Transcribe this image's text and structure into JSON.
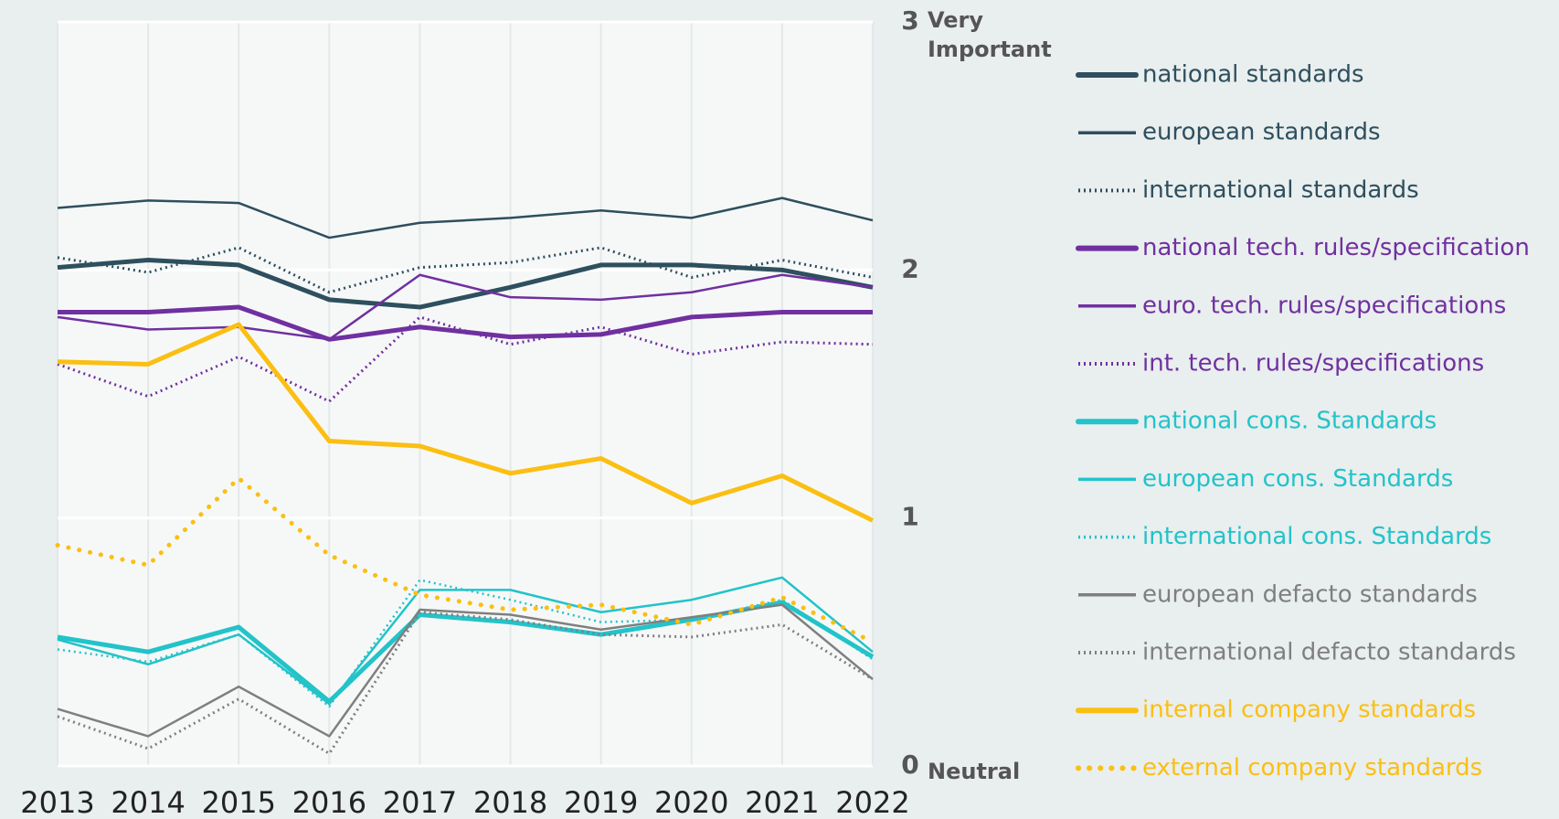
{
  "chart_data": {
    "type": "line",
    "x": [
      2013,
      2014,
      2015,
      2016,
      2017,
      2018,
      2019,
      2020,
      2021,
      2022
    ],
    "xlim": [
      2013,
      2022
    ],
    "ylim": [
      0,
      3
    ],
    "yticks": [
      0,
      1,
      2,
      3
    ],
    "annotations": {
      "top": "Very Important",
      "bottom": "Neutral"
    },
    "grid": true,
    "legend": "right",
    "series": [
      {
        "name": "national standards",
        "color": "#2e4f5e",
        "style": "solid",
        "width": 5,
        "values": [
          2.01,
          2.04,
          2.02,
          1.88,
          1.85,
          1.93,
          2.02,
          2.02,
          2.0,
          1.93
        ]
      },
      {
        "name": "european standards",
        "color": "#2e4f5e",
        "style": "solid",
        "width": 2.5,
        "values": [
          2.25,
          2.28,
          2.27,
          2.13,
          2.19,
          2.21,
          2.24,
          2.21,
          2.29,
          2.2
        ]
      },
      {
        "name": "international standards",
        "color": "#2e4f5e",
        "style": "dotted",
        "width": 3,
        "values": [
          2.05,
          1.99,
          2.09,
          1.91,
          2.01,
          2.03,
          2.09,
          1.97,
          2.04,
          1.97
        ]
      },
      {
        "name": "national tech. rules/specification",
        "color": "#7030a0",
        "style": "solid",
        "width": 5,
        "values": [
          1.83,
          1.83,
          1.85,
          1.72,
          1.77,
          1.73,
          1.74,
          1.81,
          1.83,
          1.83
        ]
      },
      {
        "name": "euro. tech. rules/specifications",
        "color": "#7030a0",
        "style": "solid",
        "width": 2.5,
        "values": [
          1.81,
          1.76,
          1.77,
          1.72,
          1.98,
          1.89,
          1.88,
          1.91,
          1.98,
          1.93
        ]
      },
      {
        "name": "int. tech. rules/specifications",
        "color": "#7030a0",
        "style": "dotted",
        "width": 3,
        "values": [
          1.62,
          1.49,
          1.65,
          1.47,
          1.81,
          1.7,
          1.77,
          1.66,
          1.71,
          1.7
        ]
      },
      {
        "name": "national cons. Standards",
        "color": "#22c3c9",
        "style": "solid",
        "width": 5,
        "values": [
          0.52,
          0.46,
          0.56,
          0.26,
          0.61,
          0.58,
          0.53,
          0.59,
          0.66,
          0.44
        ]
      },
      {
        "name": "european cons. Standards",
        "color": "#22c3c9",
        "style": "solid",
        "width": 2.5,
        "values": [
          0.51,
          0.41,
          0.53,
          0.25,
          0.71,
          0.71,
          0.62,
          0.67,
          0.76,
          0.46
        ]
      },
      {
        "name": "international cons. Standards",
        "color": "#22c3c9",
        "style": "dotted",
        "width": 2.5,
        "values": [
          0.47,
          0.42,
          0.53,
          0.24,
          0.75,
          0.67,
          0.58,
          0.59,
          0.67,
          0.43
        ]
      },
      {
        "name": "european defacto standards",
        "color": "#7f7f7f",
        "style": "solid",
        "width": 2.5,
        "values": [
          0.23,
          0.12,
          0.32,
          0.12,
          0.63,
          0.61,
          0.55,
          0.6,
          0.65,
          0.35
        ]
      },
      {
        "name": "international defacto standards",
        "color": "#7f7f7f",
        "style": "dotted",
        "width": 3,
        "values": [
          0.2,
          0.07,
          0.27,
          0.05,
          0.62,
          0.59,
          0.53,
          0.52,
          0.57,
          0.35
        ]
      },
      {
        "name": "internal company standards",
        "color": "#fbbf13",
        "style": "solid",
        "width": 5,
        "values": [
          1.63,
          1.62,
          1.78,
          1.31,
          1.29,
          1.18,
          1.24,
          1.06,
          1.17,
          0.99
        ]
      },
      {
        "name": "external company standards",
        "color": "#fbbf13",
        "style": "dotted",
        "width": 5,
        "values": [
          0.89,
          0.81,
          1.16,
          0.85,
          0.69,
          0.63,
          0.65,
          0.57,
          0.68,
          0.5
        ]
      }
    ]
  }
}
